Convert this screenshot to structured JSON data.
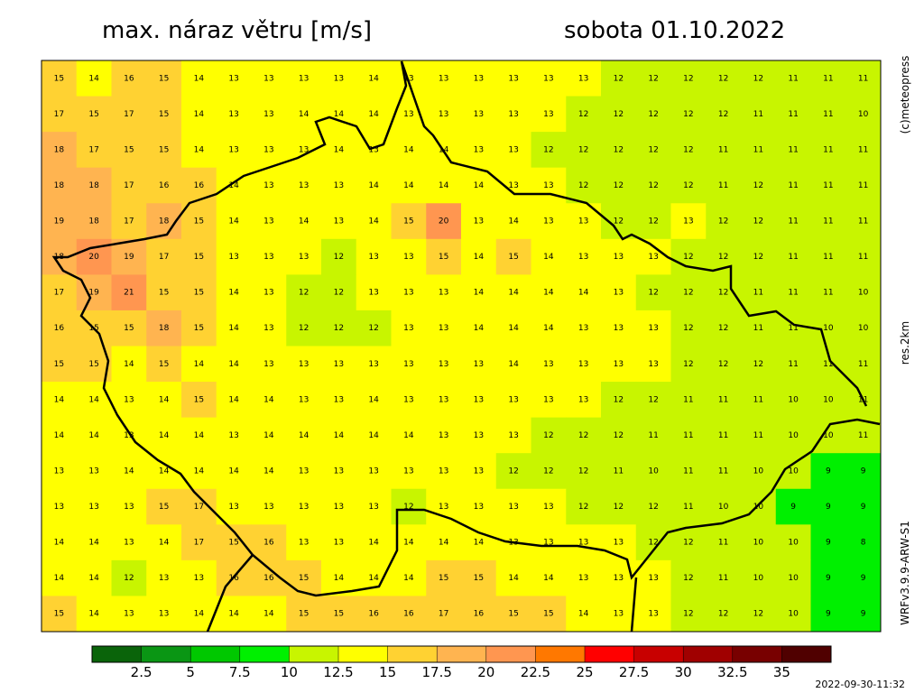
{
  "header": {
    "title": "max. náraz větru [m/s]",
    "date": "sobota 01.10.2022"
  },
  "side_labels": [
    "(c)meteopress",
    "res.2km",
    "WRFv3.9.9-ARW-S1"
  ],
  "map": {
    "grid": [
      [
        15,
        14,
        16,
        15,
        14,
        13,
        13,
        13,
        13,
        14,
        13,
        13,
        13,
        13,
        13,
        13,
        12,
        12,
        12,
        12,
        12,
        11,
        11,
        11
      ],
      [
        17,
        15,
        17,
        15,
        14,
        13,
        13,
        14,
        14,
        14,
        13,
        13,
        13,
        13,
        13,
        12,
        12,
        12,
        12,
        12,
        11,
        11,
        11,
        10
      ],
      [
        18,
        17,
        15,
        15,
        14,
        13,
        13,
        13,
        14,
        13,
        14,
        14,
        13,
        13,
        12,
        12,
        12,
        12,
        12,
        11,
        11,
        11,
        11,
        11
      ],
      [
        18,
        18,
        17,
        16,
        16,
        14,
        13,
        13,
        13,
        14,
        14,
        14,
        14,
        13,
        13,
        12,
        12,
        12,
        12,
        11,
        12,
        11,
        11,
        11
      ],
      [
        19,
        18,
        17,
        18,
        15,
        14,
        13,
        14,
        13,
        14,
        15,
        20,
        13,
        14,
        13,
        13,
        12,
        12,
        13,
        12,
        12,
        11,
        11,
        11
      ],
      [
        18,
        20,
        19,
        17,
        15,
        13,
        13,
        13,
        12,
        13,
        13,
        15,
        14,
        15,
        14,
        13,
        13,
        13,
        12,
        12,
        12,
        11,
        11,
        11
      ],
      [
        17,
        19,
        21,
        15,
        15,
        14,
        13,
        12,
        12,
        13,
        13,
        13,
        14,
        14,
        14,
        14,
        13,
        12,
        12,
        12,
        11,
        11,
        11,
        10
      ],
      [
        16,
        15,
        15,
        18,
        15,
        14,
        13,
        12,
        12,
        12,
        13,
        13,
        14,
        14,
        14,
        13,
        13,
        13,
        12,
        12,
        11,
        11,
        10,
        10
      ],
      [
        15,
        15,
        14,
        15,
        14,
        14,
        13,
        13,
        13,
        13,
        13,
        13,
        13,
        14,
        13,
        13,
        13,
        13,
        12,
        12,
        12,
        11,
        11,
        11
      ],
      [
        14,
        14,
        13,
        14,
        15,
        14,
        14,
        13,
        13,
        14,
        13,
        13,
        13,
        13,
        13,
        13,
        12,
        12,
        11,
        11,
        11,
        10,
        10,
        11
      ],
      [
        14,
        14,
        13,
        14,
        14,
        13,
        14,
        14,
        14,
        14,
        14,
        13,
        13,
        13,
        12,
        12,
        12,
        11,
        11,
        11,
        11,
        10,
        10,
        11
      ],
      [
        13,
        13,
        14,
        14,
        14,
        14,
        14,
        13,
        13,
        13,
        13,
        13,
        13,
        12,
        12,
        12,
        11,
        10,
        11,
        11,
        10,
        10,
        9,
        9
      ],
      [
        13,
        13,
        13,
        15,
        17,
        13,
        13,
        13,
        13,
        13,
        12,
        13,
        13,
        13,
        13,
        12,
        12,
        12,
        11,
        10,
        10,
        9,
        9,
        9
      ],
      [
        14,
        14,
        13,
        14,
        17,
        15,
        16,
        13,
        13,
        14,
        14,
        14,
        14,
        13,
        13,
        13,
        13,
        12,
        12,
        11,
        10,
        10,
        9,
        8
      ],
      [
        14,
        14,
        12,
        13,
        13,
        16,
        16,
        15,
        14,
        14,
        14,
        15,
        15,
        14,
        14,
        13,
        13,
        13,
        12,
        11,
        10,
        10,
        9,
        9
      ],
      [
        15,
        14,
        13,
        13,
        14,
        14,
        14,
        15,
        15,
        16,
        16,
        17,
        16,
        15,
        15,
        14,
        13,
        13,
        12,
        12,
        12,
        10,
        9,
        9
      ]
    ]
  },
  "colorbar": {
    "colors": [
      "#0a640a",
      "#0a9614",
      "#00c800",
      "#00f000",
      "#c8f500",
      "#ffff00",
      "#ffd232",
      "#ffb450",
      "#ff9650",
      "#ff7800",
      "#ff0000",
      "#c80000",
      "#a00000",
      "#780000",
      "#500000"
    ],
    "ticks": [
      2.5,
      5,
      7.5,
      10,
      12.5,
      15,
      17.5,
      20,
      22.5,
      25,
      27.5,
      30,
      32.5,
      35
    ]
  },
  "timestamp": "2022-09-30-11:32"
}
